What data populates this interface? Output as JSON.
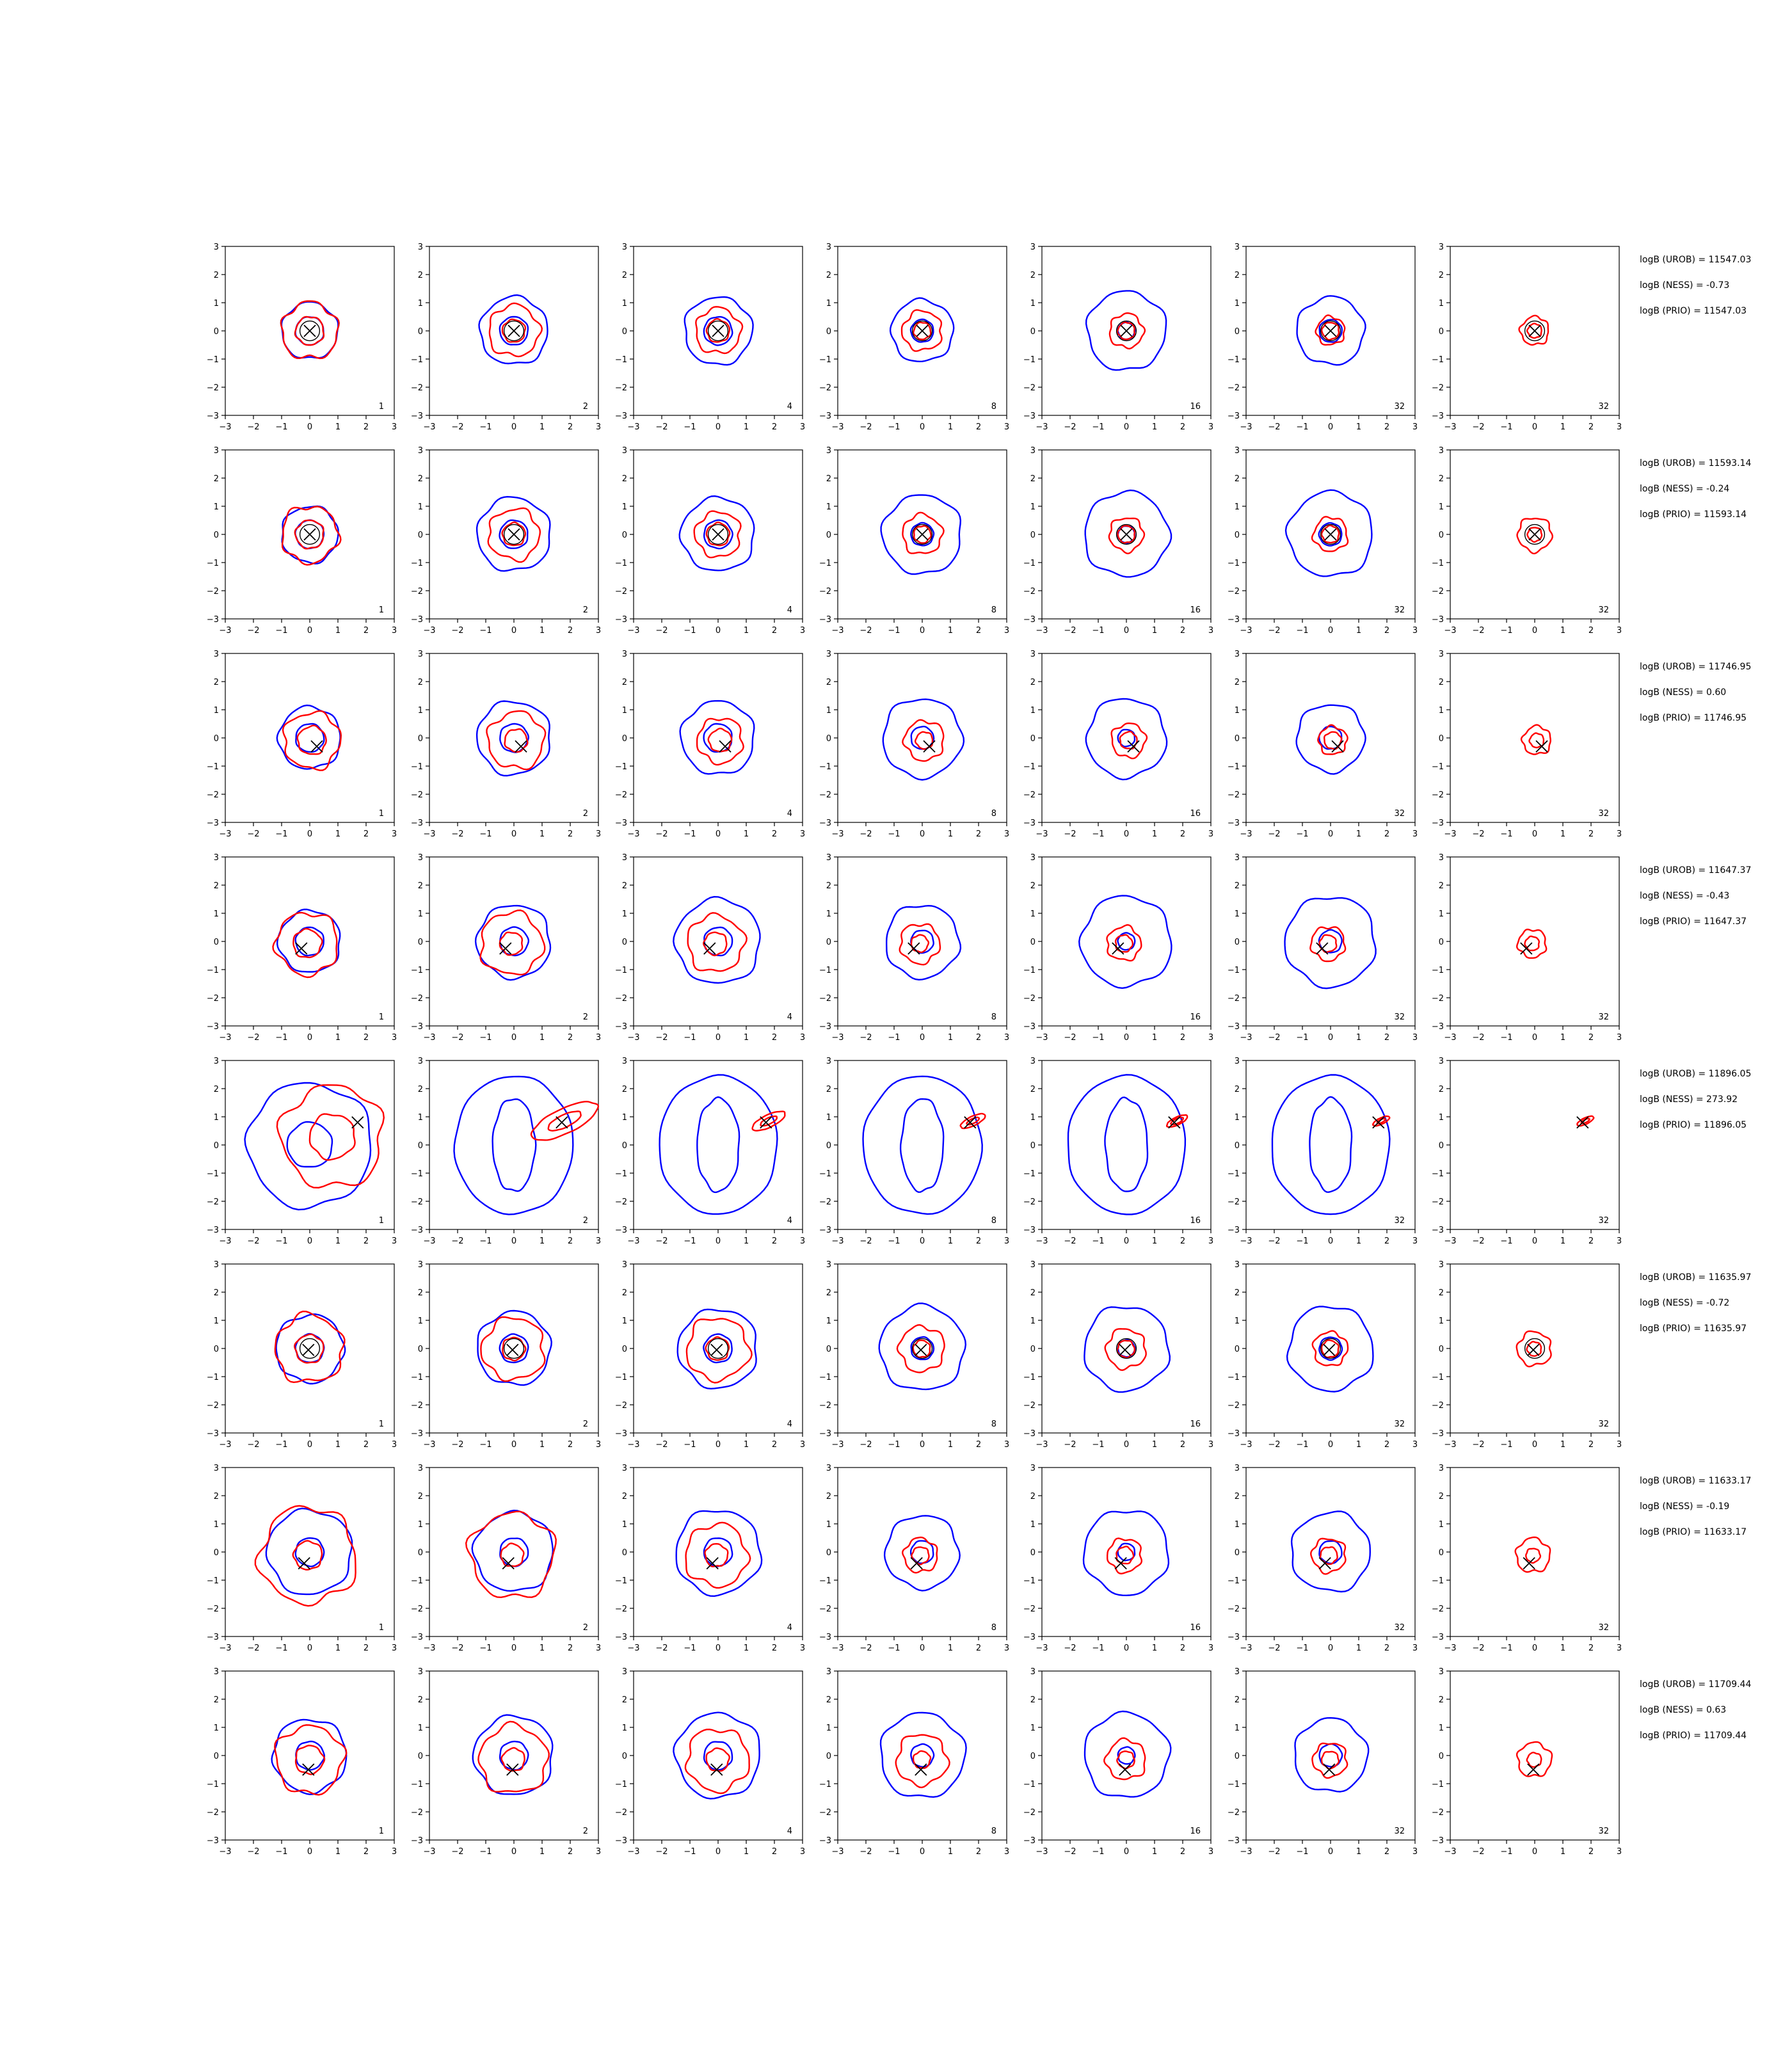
{
  "chart_data": {
    "type": "contour-grid",
    "xlim": [
      -3,
      3
    ],
    "ylim": [
      -3,
      3
    ],
    "xticks": [
      -3,
      -2,
      -1,
      0,
      1,
      2,
      3
    ],
    "yticks": [
      -3,
      -2,
      -1,
      0,
      1,
      2,
      3
    ],
    "grid": false,
    "colors": {
      "reference": "#0000ff",
      "estimate": "#ff0000",
      "marker": "#000000"
    },
    "column_labels": [
      "1",
      "2",
      "4",
      "8",
      "16",
      "32",
      "32"
    ],
    "rows": [
      {
        "marker": [
          0.0,
          0.0
        ],
        "stats": [
          "logB (UROB) = 11547.03",
          "logB (NESS) = -0.73",
          "logB (PRIO) = 11547.03"
        ],
        "panels": [
          {
            "blue": [
              0.5,
              1.0
            ],
            "red": [
              0.5,
              1.0
            ]
          },
          {
            "blue": [
              0.5,
              1.2
            ],
            "red": [
              0.4,
              0.9
            ]
          },
          {
            "blue": [
              0.5,
              1.2
            ],
            "red": [
              0.4,
              0.8
            ]
          },
          {
            "blue": [
              0.4,
              1.1
            ],
            "red": [
              0.3,
              0.7
            ]
          },
          {
            "blue": [
              0.3,
              1.4
            ],
            "red": [
              0.3,
              0.6
            ]
          },
          {
            "blue": [
              0.4,
              1.2
            ],
            "red": [
              0.3,
              0.5
            ]
          },
          {
            "blue": [],
            "red": [
              0.25,
              0.5
            ]
          }
        ]
      },
      {
        "marker": [
          0.0,
          0.0
        ],
        "stats": [
          "logB (UROB) = 11593.14",
          "logB (NESS) = -0.24",
          "logB (PRIO) = 11593.14"
        ],
        "panels": [
          {
            "blue": [
              0.5,
              1.0
            ],
            "red": [
              0.5,
              1.0
            ]
          },
          {
            "blue": [
              0.5,
              1.3
            ],
            "red": [
              0.4,
              0.9
            ]
          },
          {
            "blue": [
              0.5,
              1.3
            ],
            "red": [
              0.4,
              0.8
            ]
          },
          {
            "blue": [
              0.4,
              1.4
            ],
            "red": [
              0.3,
              0.7
            ]
          },
          {
            "blue": [
              0.3,
              1.5
            ],
            "red": [
              0.3,
              0.6
            ]
          },
          {
            "blue": [
              0.4,
              1.5
            ],
            "red": [
              0.3,
              0.6
            ]
          },
          {
            "blue": [],
            "red": [
              0.25,
              0.6
            ]
          }
        ]
      },
      {
        "marker": [
          0.25,
          -0.3
        ],
        "stats": [
          "logB (UROB) = 11746.95",
          "logB (NESS) = 0.60",
          "logB (PRIO) = 11746.95"
        ],
        "panels": [
          {
            "blue": [
              0.5,
              1.1
            ],
            "red": [
              0.5,
              1.0
            ]
          },
          {
            "blue": [
              0.5,
              1.3
            ],
            "red": [
              0.4,
              1.0
            ]
          },
          {
            "blue": [
              0.5,
              1.3
            ],
            "red": [
              0.4,
              0.8
            ]
          },
          {
            "blue": [
              0.4,
              1.4
            ],
            "red": [
              0.3,
              0.7
            ]
          },
          {
            "blue": [
              0.3,
              1.4
            ],
            "red": [
              0.3,
              0.6
            ]
          },
          {
            "blue": [
              0.4,
              1.2
            ],
            "red": [
              0.3,
              0.5
            ]
          },
          {
            "blue": [],
            "red": [
              0.25,
              0.5
            ]
          }
        ]
      },
      {
        "marker": [
          -0.3,
          -0.25
        ],
        "stats": [
          "logB (UROB) = 11647.37",
          "logB (NESS) = -0.43",
          "logB (PRIO) = 11647.37"
        ],
        "panels": [
          {
            "blue": [
              0.5,
              1.1
            ],
            "red": [
              0.5,
              1.1
            ]
          },
          {
            "blue": [
              0.5,
              1.3
            ],
            "red": [
              0.4,
              1.1
            ]
          },
          {
            "blue": [
              0.5,
              1.5
            ],
            "red": [
              0.4,
              1.0
            ]
          },
          {
            "blue": [
              0.4,
              1.3
            ],
            "red": [
              0.3,
              0.7
            ]
          },
          {
            "blue": [
              0.3,
              1.6
            ],
            "red": [
              0.3,
              0.6
            ]
          },
          {
            "blue": [
              0.4,
              1.6
            ],
            "red": [
              0.3,
              0.6
            ]
          },
          {
            "blue": [],
            "red": [
              0.25,
              0.5
            ]
          }
        ]
      },
      {
        "marker": [
          1.7,
          0.8
        ],
        "stats": [
          "logB (UROB) = 11896.05",
          "logB (NESS) = 273.92",
          "logB (PRIO) = 11896.05"
        ],
        "panels": [
          {
            "blue": [
              0.8,
              2.2
            ],
            "red": [
              0.8,
              1.8
            ]
          },
          {
            "blue": [
              0.9,
              2.1
            ],
            "red": [
              0.4,
              0.8
            ]
          },
          {
            "blue": [
              0.9,
              2.3
            ],
            "red": [
              0.2,
              0.4
            ]
          },
          {
            "blue": [
              0.9,
              2.2
            ],
            "red": [
              0.15,
              0.3
            ]
          },
          {
            "blue": [
              0.9,
              2.2
            ],
            "red": [
              0.15,
              0.25
            ]
          },
          {
            "blue": [
              0.9,
              2.2
            ],
            "red": [
              0.1,
              0.2
            ]
          },
          {
            "blue": [],
            "red": [
              0.1,
              0.2
            ]
          }
        ]
      },
      {
        "marker": [
          -0.05,
          -0.05
        ],
        "stats": [
          "logB (UROB) = 11635.97",
          "logB (NESS) = -0.72",
          "logB (PRIO) = 11635.97"
        ],
        "panels": [
          {
            "blue": [
              0.5,
              1.2
            ],
            "red": [
              0.5,
              1.2
            ]
          },
          {
            "blue": [
              0.5,
              1.3
            ],
            "red": [
              0.4,
              1.1
            ]
          },
          {
            "blue": [
              0.5,
              1.4
            ],
            "red": [
              0.4,
              1.1
            ]
          },
          {
            "blue": [
              0.4,
              1.5
            ],
            "red": [
              0.3,
              0.8
            ]
          },
          {
            "blue": [
              0.3,
              1.5
            ],
            "red": [
              0.3,
              0.7
            ]
          },
          {
            "blue": [
              0.4,
              1.5
            ],
            "red": [
              0.3,
              0.6
            ]
          },
          {
            "blue": [],
            "red": [
              0.25,
              0.6
            ]
          }
        ]
      },
      {
        "marker": [
          -0.2,
          -0.4
        ],
        "stats": [
          "logB (UROB) = 11633.17",
          "logB (NESS) = -0.19",
          "logB (PRIO) = 11633.17"
        ],
        "panels": [
          {
            "blue": [
              0.5,
              1.5
            ],
            "red": [
              0.5,
              1.7
            ]
          },
          {
            "blue": [
              0.5,
              1.4
            ],
            "red": [
              0.4,
              1.5
            ]
          },
          {
            "blue": [
              0.5,
              1.5
            ],
            "red": [
              0.4,
              1.1
            ]
          },
          {
            "blue": [
              0.4,
              1.3
            ],
            "red": [
              0.3,
              0.6
            ]
          },
          {
            "blue": [
              0.3,
              1.5
            ],
            "red": [
              0.3,
              0.6
            ]
          },
          {
            "blue": [
              0.4,
              1.4
            ],
            "red": [
              0.3,
              0.6
            ]
          },
          {
            "blue": [],
            "red": [
              0.25,
              0.6
            ]
          }
        ]
      },
      {
        "marker": [
          -0.05,
          -0.5
        ],
        "stats": [
          "logB (UROB) = 11709.44",
          "logB (NESS) = 0.63",
          "logB (PRIO) = 11709.44"
        ],
        "panels": [
          {
            "blue": [
              0.5,
              1.3
            ],
            "red": [
              0.5,
              1.2
            ]
          },
          {
            "blue": [
              0.5,
              1.4
            ],
            "red": [
              0.4,
              1.2
            ]
          },
          {
            "blue": [
              0.5,
              1.5
            ],
            "red": [
              0.4,
              1.1
            ]
          },
          {
            "blue": [
              0.4,
              1.5
            ],
            "red": [
              0.3,
              0.9
            ]
          },
          {
            "blue": [
              0.3,
              1.5
            ],
            "red": [
              0.3,
              0.7
            ]
          },
          {
            "blue": [
              0.4,
              1.3
            ],
            "red": [
              0.3,
              0.6
            ]
          },
          {
            "blue": [],
            "red": [
              0.25,
              0.6
            ]
          }
        ]
      }
    ]
  }
}
